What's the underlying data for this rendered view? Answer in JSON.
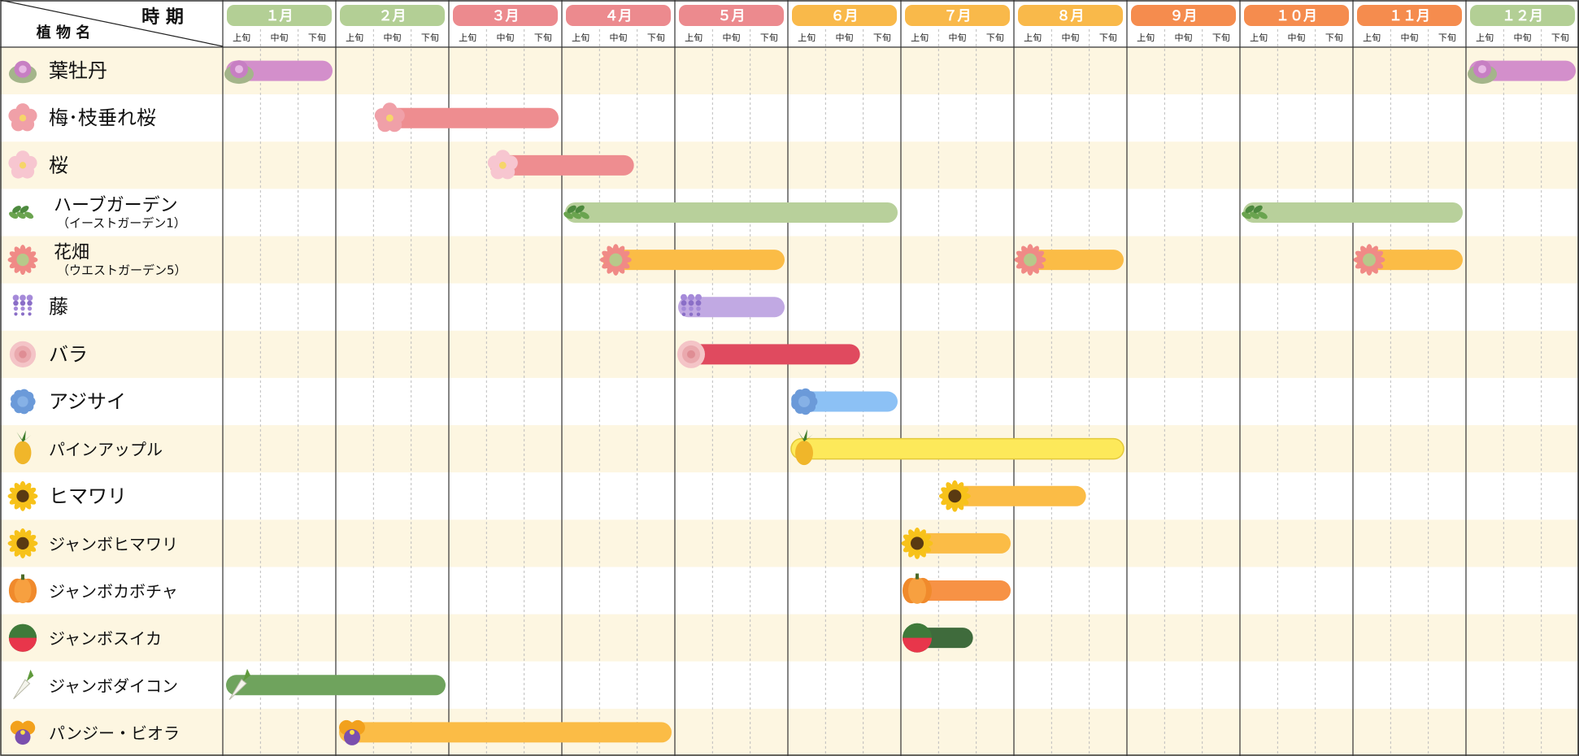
{
  "header": {
    "corner_top": "時 期",
    "corner_bottom": "植 物 名"
  },
  "colors": {
    "row_alt": "#fdf6e1",
    "row_plain": "#ffffff",
    "grid_minor": "#bdbdbd",
    "grid_major": "#333333",
    "border": "#333333"
  },
  "chart_data": {
    "type": "gantt",
    "months": [
      {
        "label": "１月",
        "color": "#b3cf95"
      },
      {
        "label": "２月",
        "color": "#b3cf95"
      },
      {
        "label": "３月",
        "color": "#ec8a8e"
      },
      {
        "label": "４月",
        "color": "#ec8a8e"
      },
      {
        "label": "５月",
        "color": "#ec8a8e"
      },
      {
        "label": "６月",
        "color": "#f9b94a"
      },
      {
        "label": "７月",
        "color": "#f9b94a"
      },
      {
        "label": "８月",
        "color": "#f9b94a"
      },
      {
        "label": "９月",
        "color": "#f58c4e"
      },
      {
        "label": "１０月",
        "color": "#f58c4e"
      },
      {
        "label": "１１月",
        "color": "#f58c4e"
      },
      {
        "label": "１２月",
        "color": "#b3cf95"
      }
    ],
    "periods": [
      "上旬",
      "中旬",
      "下旬"
    ],
    "rows": [
      {
        "name": "葉牡丹",
        "icon": "ornamental-kale-icon",
        "color": "#d38fcb",
        "spans": [
          {
            "start": "１月 上旬",
            "end": "１月 下旬"
          },
          {
            "start": "１２月 上旬",
            "end": "１２月 下旬"
          }
        ]
      },
      {
        "name": "梅･枝垂れ桜",
        "icon": "plum-blossom-icon",
        "color": "#ee8d90",
        "spans": [
          {
            "start": "２月 中旬",
            "end": "３月 下旬"
          }
        ]
      },
      {
        "name": "桜",
        "icon": "cherry-blossom-icon",
        "color": "#ee8d90",
        "spans": [
          {
            "start": "３月 中旬",
            "end": "４月 中旬"
          }
        ]
      },
      {
        "name": "ハーブガーデン",
        "sub": "（イーストガーデン1）",
        "icon": "herb-leaves-icon",
        "color": "#b8d09b",
        "spans": [
          {
            "start": "４月 上旬",
            "end": "６月 下旬"
          },
          {
            "start": "１０月 上旬",
            "end": "１１月 下旬"
          }
        ]
      },
      {
        "name": "花畑",
        "sub": "（ウエストガーデン5）",
        "icon": "gerbera-icon",
        "color": "#fbbc46",
        "spans": [
          {
            "start": "４月 中旬",
            "end": "５月 下旬"
          },
          {
            "start": "８月 上旬",
            "end": "８月 下旬"
          },
          {
            "start": "１１月 上旬",
            "end": "１１月 下旬"
          }
        ]
      },
      {
        "name": "藤",
        "icon": "wisteria-icon",
        "color": "#c1a9e3",
        "spans": [
          {
            "start": "５月 上旬",
            "end": "５月 下旬"
          }
        ]
      },
      {
        "name": "バラ",
        "icon": "rose-icon",
        "color": "#e04a5f",
        "spans": [
          {
            "start": "５月 上旬",
            "end": "６月 中旬"
          }
        ]
      },
      {
        "name": "アジサイ",
        "icon": "hydrangea-icon",
        "color": "#8cc1f5",
        "spans": [
          {
            "start": "６月 上旬",
            "end": "６月 下旬"
          }
        ]
      },
      {
        "name": "パインアップル",
        "icon": "pineapple-icon",
        "color": "#fde95a",
        "spans": [
          {
            "start": "６月 上旬",
            "end": "８月 下旬"
          }
        ]
      },
      {
        "name": "ヒマワリ",
        "icon": "sunflower-icon",
        "color": "#fbbc46",
        "spans": [
          {
            "start": "７月 中旬",
            "end": "８月 中旬"
          }
        ]
      },
      {
        "name": "ジャンボヒマワリ",
        "icon": "sunflower-icon",
        "color": "#fbbc46",
        "spans": [
          {
            "start": "７月 上旬",
            "end": "７月 下旬"
          }
        ]
      },
      {
        "name": "ジャンボカボチャ",
        "icon": "pumpkin-icon",
        "color": "#f79245",
        "spans": [
          {
            "start": "７月 上旬",
            "end": "７月 下旬"
          }
        ]
      },
      {
        "name": "ジャンボスイカ",
        "icon": "watermelon-icon",
        "color": "#3f6b3c",
        "spans": [
          {
            "start": "７月 上旬",
            "end": "７月 中旬"
          }
        ]
      },
      {
        "name": "ジャンボダイコン",
        "icon": "daikon-icon",
        "color": "#6fa35d",
        "spans": [
          {
            "start": "１月 上旬",
            "end": "２月 下旬"
          }
        ]
      },
      {
        "name": "パンジー・ビオラ",
        "icon": "pansy-icon",
        "color": "#fbbc46",
        "spans": [
          {
            "start": "２月 上旬",
            "end": "４月 下旬"
          }
        ]
      }
    ]
  }
}
